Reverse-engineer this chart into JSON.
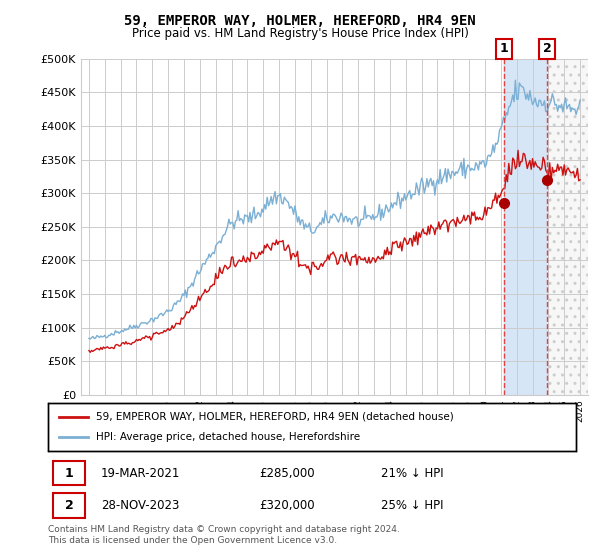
{
  "title": "59, EMPEROR WAY, HOLMER, HEREFORD, HR4 9EN",
  "subtitle": "Price paid vs. HM Land Registry's House Price Index (HPI)",
  "ylim": [
    0,
    500000
  ],
  "yticks": [
    0,
    50000,
    100000,
    150000,
    200000,
    250000,
    300000,
    350000,
    400000,
    450000,
    500000
  ],
  "ytick_labels": [
    "£0",
    "£50K",
    "£100K",
    "£150K",
    "£200K",
    "£250K",
    "£300K",
    "£350K",
    "£400K",
    "£450K",
    "£500K"
  ],
  "hpi_color": "#7bafd4",
  "price_color": "#cc1111",
  "marker_color": "#aa0000",
  "bg_color": "#ffffff",
  "grid_color": "#cccccc",
  "annotation_box_color": "#cc0000",
  "legend_label_price": "59, EMPEROR WAY, HOLMER, HEREFORD, HR4 9EN (detached house)",
  "legend_label_hpi": "HPI: Average price, detached house, Herefordshire",
  "transaction1_date": "19-MAR-2021",
  "transaction1_price": "£285,000",
  "transaction1_hpi": "21% ↓ HPI",
  "transaction2_date": "28-NOV-2023",
  "transaction2_price": "£320,000",
  "transaction2_hpi": "25% ↓ HPI",
  "footnote": "Contains HM Land Registry data © Crown copyright and database right 2024.\nThis data is licensed under the Open Government Licence v3.0.",
  "transaction1_x": 2021.21,
  "transaction1_y": 285000,
  "transaction2_x": 2023.92,
  "transaction2_y": 320000,
  "xlim_left": 1994.5,
  "xlim_right": 2026.5
}
